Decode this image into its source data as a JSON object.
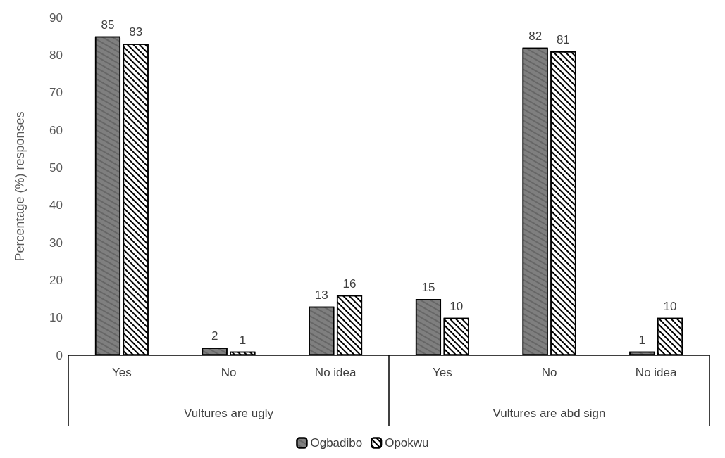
{
  "chart_data": {
    "type": "bar",
    "ylabel": "Percentage (%) responses",
    "categories": [
      "Yes",
      "No",
      "No idea",
      "Yes",
      "No",
      "No idea"
    ],
    "series": [
      {
        "name": "Ogbadibo",
        "color": "#7f7f7f",
        "values": [
          85,
          2,
          13,
          15,
          82,
          1
        ]
      },
      {
        "name": "Opokwu",
        "color": "#ffffff",
        "values": [
          83,
          1,
          16,
          10,
          81,
          10
        ]
      }
    ],
    "annotations": [
      "Vultures are ugly",
      "Vultures are abd sign"
    ],
    "ylim": [
      0,
      90
    ],
    "yticks": [
      0,
      10,
      20,
      30,
      40,
      50,
      60,
      70,
      80,
      90
    ],
    "grid": false,
    "legend": "bottom",
    "data_labels": true
  }
}
